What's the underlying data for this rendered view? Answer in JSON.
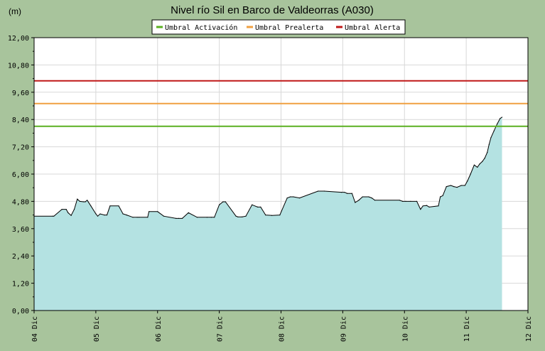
{
  "chart_data": {
    "type": "area",
    "title": "Nivel río Sil en Barco de Valdeorras  (A030)",
    "unit_label": "(m)",
    "ylim": [
      0,
      12
    ],
    "y_ticks": [
      "0,00",
      "1,20",
      "2,40",
      "3,60",
      "4,80",
      "6,00",
      "7,20",
      "8,40",
      "9,60",
      "10,80",
      "12,00"
    ],
    "x_range_days": [
      0,
      8
    ],
    "x_ticks": [
      "04 Dic",
      "05 Dic",
      "06 Dic",
      "07 Dic",
      "08 Dic",
      "09 Dic",
      "10 Dic",
      "11 Dic",
      "12 Dic"
    ],
    "grid": true,
    "legend_placement": "top-center",
    "thresholds": [
      {
        "name": "Umbral Activación",
        "value": 8.1,
        "color": "#5ab020"
      },
      {
        "name": "Umbral Prealerta",
        "value": 9.1,
        "color": "#f0a040"
      },
      {
        "name": "Umbral Alerta",
        "value": 10.1,
        "color": "#c01818"
      }
    ],
    "series": {
      "fill_color": "#b4e2e2",
      "line_color": "#000000",
      "x": [
        0,
        0.3,
        0.32,
        0.45,
        0.52,
        0.55,
        0.6,
        0.65,
        0.7,
        0.74,
        0.8,
        0.83,
        0.86,
        0.92,
        1.0,
        1.03,
        1.07,
        1.14,
        1.18,
        1.23,
        1.37,
        1.44,
        1.5,
        1.6,
        1.67,
        1.7,
        1.84,
        1.86,
        2.0,
        2.1,
        2.3,
        2.34,
        2.4,
        2.5,
        2.64,
        2.8,
        2.87,
        2.92,
        3.0,
        3.06,
        3.1,
        3.27,
        3.3,
        3.37,
        3.43,
        3.53,
        3.62,
        3.67,
        3.75,
        3.85,
        3.98,
        4.1,
        4.15,
        4.2,
        4.3,
        4.6,
        4.7,
        4.98,
        5.03,
        5.07,
        5.15,
        5.2,
        5.26,
        5.32,
        5.42,
        5.47,
        5.52,
        5.92,
        5.97,
        6.02,
        6.1,
        6.2,
        6.26,
        6.3,
        6.36,
        6.4,
        6.55,
        6.58,
        6.62,
        6.68,
        6.75,
        6.8,
        6.85,
        6.92,
        6.98,
        7.02,
        7.07,
        7.13,
        7.18,
        7.22,
        7.26,
        7.3,
        7.34,
        7.37,
        7.4,
        7.45,
        7.5,
        7.55,
        7.58
      ],
      "y": [
        4.15,
        4.15,
        4.15,
        4.45,
        4.45,
        4.3,
        4.18,
        4.45,
        4.9,
        4.8,
        4.78,
        4.78,
        4.85,
        4.6,
        4.25,
        4.15,
        4.25,
        4.2,
        4.2,
        4.6,
        4.6,
        4.25,
        4.2,
        4.1,
        4.1,
        4.1,
        4.1,
        4.35,
        4.35,
        4.15,
        4.05,
        4.05,
        4.05,
        4.3,
        4.1,
        4.1,
        4.1,
        4.1,
        4.65,
        4.78,
        4.78,
        4.15,
        4.12,
        4.12,
        4.15,
        4.65,
        4.55,
        4.55,
        4.2,
        4.18,
        4.2,
        4.95,
        5.0,
        5.0,
        4.95,
        5.25,
        5.25,
        5.2,
        5.2,
        5.15,
        5.15,
        4.75,
        4.85,
        5.0,
        5.0,
        4.95,
        4.85,
        4.85,
        4.8,
        4.8,
        4.8,
        4.8,
        4.45,
        4.6,
        4.62,
        4.55,
        4.6,
        5.0,
        5.05,
        5.45,
        5.5,
        5.45,
        5.42,
        5.5,
        5.5,
        5.7,
        6.0,
        6.4,
        6.3,
        6.45,
        6.55,
        6.7,
        6.95,
        7.3,
        7.6,
        7.9,
        8.2,
        8.45,
        8.5
      ]
    }
  }
}
